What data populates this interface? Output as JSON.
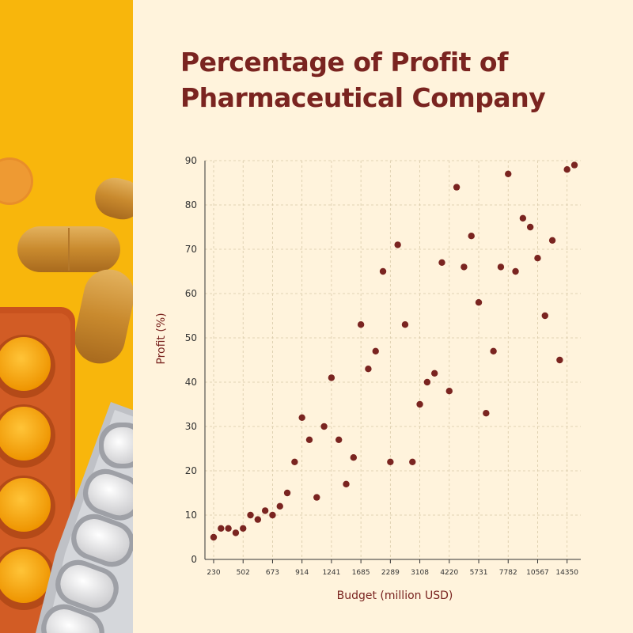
{
  "chart_data": {
    "type": "scatter",
    "title": "Percentage of Profit of Pharmaceutical Company",
    "xlabel": "Budget (million USD)",
    "ylabel": "Profit (%)",
    "ylim": [
      0,
      90
    ],
    "y_ticks": [
      "0",
      "10",
      "20",
      "30",
      "40",
      "50",
      "60",
      "70",
      "80",
      "90"
    ],
    "x_tick_labels": [
      "230",
      "502",
      "673",
      "914",
      "1241",
      "1685",
      "2289",
      "3108",
      "4220",
      "5731",
      "7782",
      "10567",
      "14350"
    ],
    "x_tick_indices": [
      0,
      4,
      8,
      12,
      16,
      20,
      24,
      28,
      32,
      36,
      40,
      44,
      48
    ],
    "grid": true,
    "point_color": "#7A2420",
    "points_y": [
      5,
      7,
      7,
      6,
      7,
      10,
      9,
      11,
      10,
      12,
      15,
      22,
      32,
      27,
      14,
      30,
      41,
      27,
      17,
      23,
      53,
      43,
      47,
      65,
      22,
      71,
      53,
      22,
      35,
      40,
      42,
      67,
      38,
      84,
      66,
      73,
      58,
      33,
      47,
      66,
      87,
      65,
      77,
      75,
      68,
      55,
      72,
      45,
      88,
      89
    ]
  },
  "colors": {
    "background": "#FFF3DC",
    "title": "#7A2420",
    "photo_background": "#F8B60C"
  }
}
